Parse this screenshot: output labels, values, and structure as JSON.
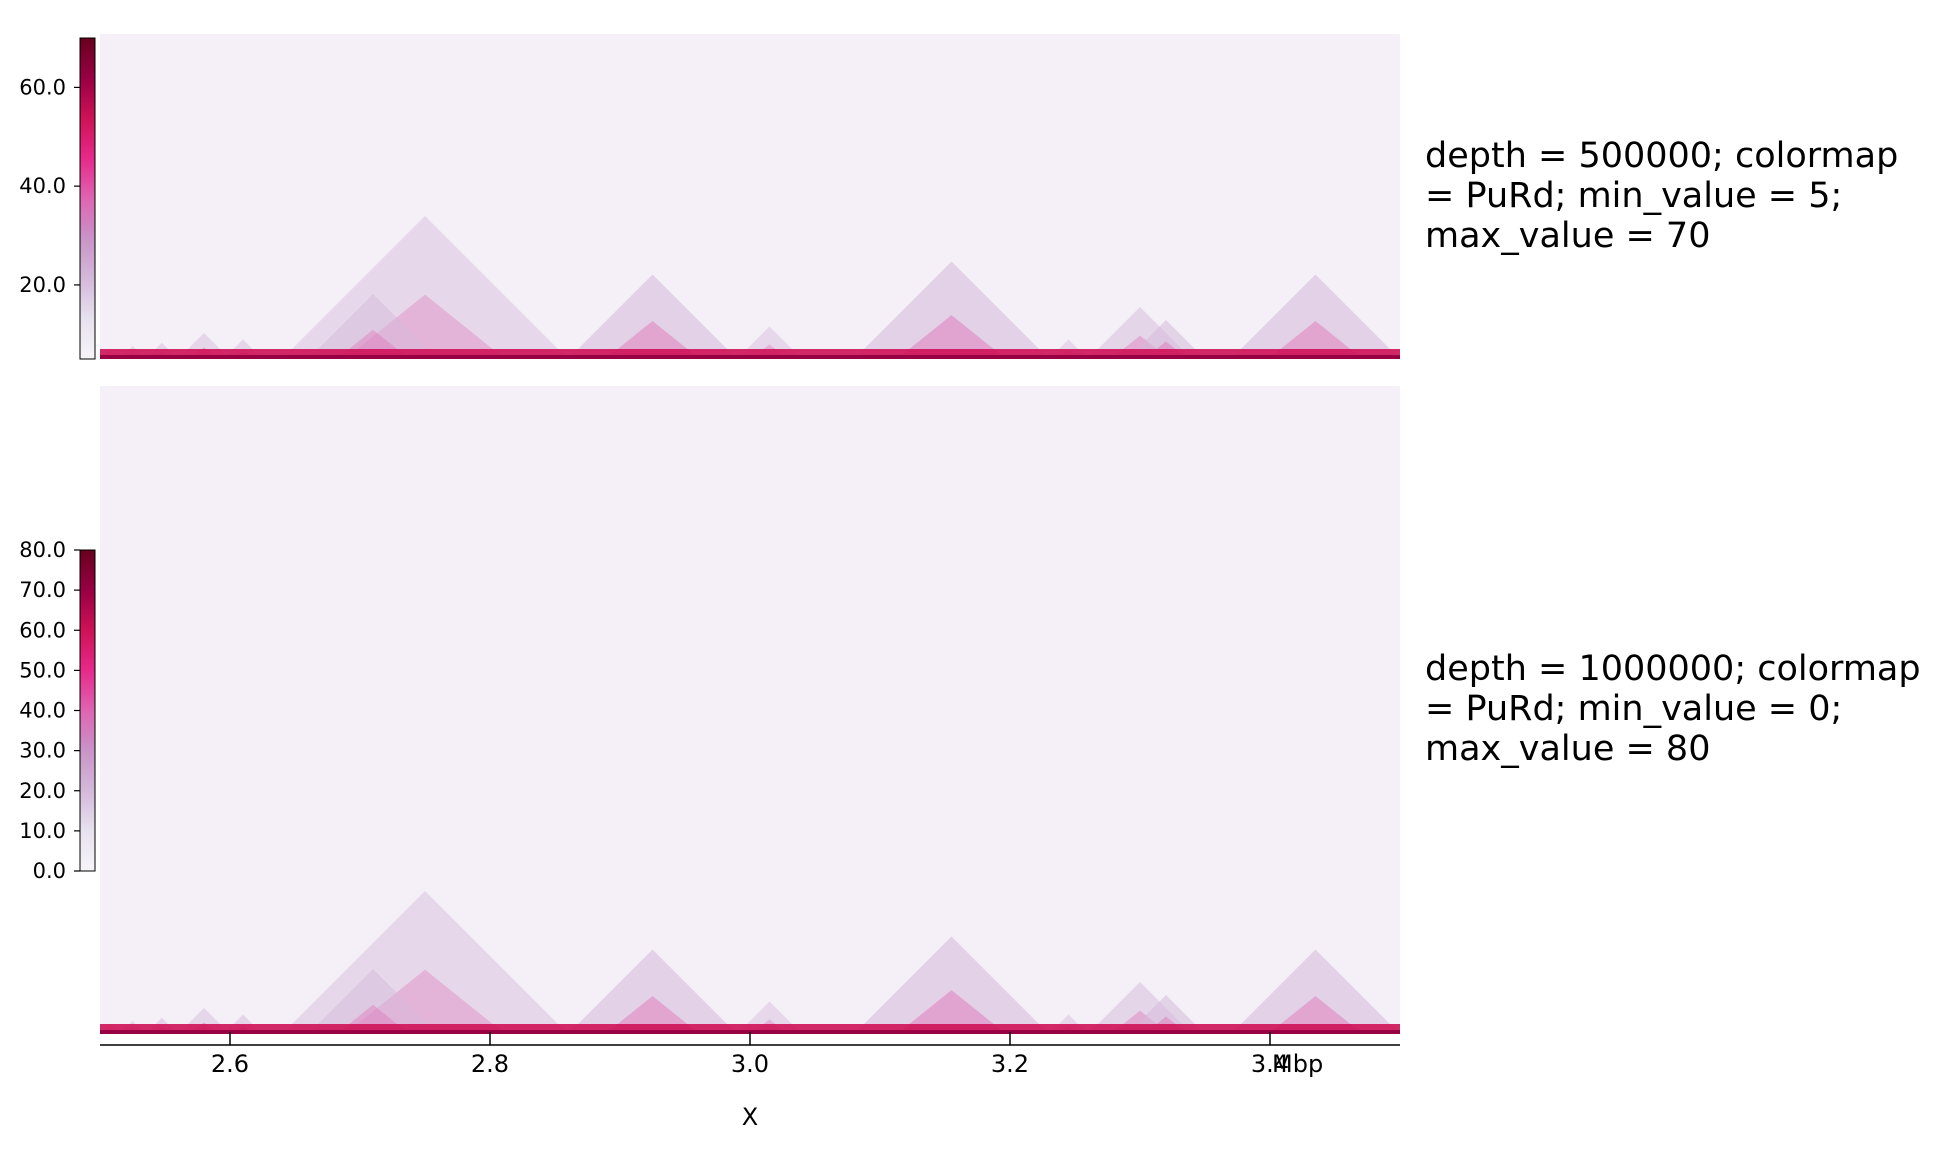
{
  "chart_data": [
    {
      "type": "heatmap",
      "subtype": "triangular Hi-C contact map",
      "label": "depth = 500000; colormap = PuRd; min_value = 5; max_value = 70",
      "colormap": "PuRd",
      "min_value": 5,
      "max_value": 70,
      "depth": 500000,
      "colorbar_ticks": [
        20.0,
        40.0,
        60.0
      ],
      "colorbar_tick_labels": [
        "20.0",
        "40.0",
        "60.0"
      ]
    },
    {
      "type": "heatmap",
      "subtype": "triangular Hi-C contact map",
      "label": "depth = 1000000; colormap = PuRd; min_value = 0; max_value = 80",
      "colormap": "PuRd",
      "min_value": 0,
      "max_value": 80,
      "depth": 1000000,
      "colorbar_ticks": [
        0,
        10,
        20,
        30,
        40,
        50,
        60,
        70,
        80
      ],
      "colorbar_tick_labels": [
        "0.0",
        "10.0",
        "20.0",
        "30.0",
        "40.0",
        "50.0",
        "60.0",
        "70.0",
        "80.0"
      ]
    }
  ],
  "x_axis": {
    "label": "X",
    "unit": "Mbp",
    "range": [
      2.5,
      3.5
    ],
    "ticks": [
      2.6,
      2.8,
      3.0,
      3.2,
      3.4
    ],
    "tick_labels": [
      "2.6",
      "2.8",
      "3.0",
      "3.2",
      "3.4"
    ]
  },
  "domains": [
    {
      "start": 2.5,
      "end": 2.515,
      "strength": 0.55
    },
    {
      "start": 2.515,
      "end": 2.535,
      "strength": 0.55
    },
    {
      "start": 2.535,
      "end": 2.56,
      "strength": 0.6
    },
    {
      "start": 2.56,
      "end": 2.6,
      "strength": 0.55
    },
    {
      "start": 2.595,
      "end": 2.625,
      "strength": 0.6
    },
    {
      "start": 2.64,
      "end": 2.86,
      "strength": 0.45
    },
    {
      "start": 2.66,
      "end": 2.76,
      "strength": 0.55
    },
    {
      "start": 2.86,
      "end": 2.99,
      "strength": 0.75
    },
    {
      "start": 2.99,
      "end": 3.04,
      "strength": 0.5
    },
    {
      "start": 3.08,
      "end": 3.23,
      "strength": 0.8
    },
    {
      "start": 3.23,
      "end": 3.26,
      "strength": 0.5
    },
    {
      "start": 3.26,
      "end": 3.34,
      "strength": 0.6
    },
    {
      "start": 3.29,
      "end": 3.35,
      "strength": 0.7
    },
    {
      "start": 3.37,
      "end": 3.5,
      "strength": 0.75
    }
  ],
  "colors": {
    "background": "#f5f0f7",
    "colormap_stops": [
      "#f7f4f9",
      "#e7e1ef",
      "#d4b9da",
      "#c994c7",
      "#df65b0",
      "#e7298a",
      "#ce1256",
      "#980043",
      "#67001f"
    ]
  }
}
